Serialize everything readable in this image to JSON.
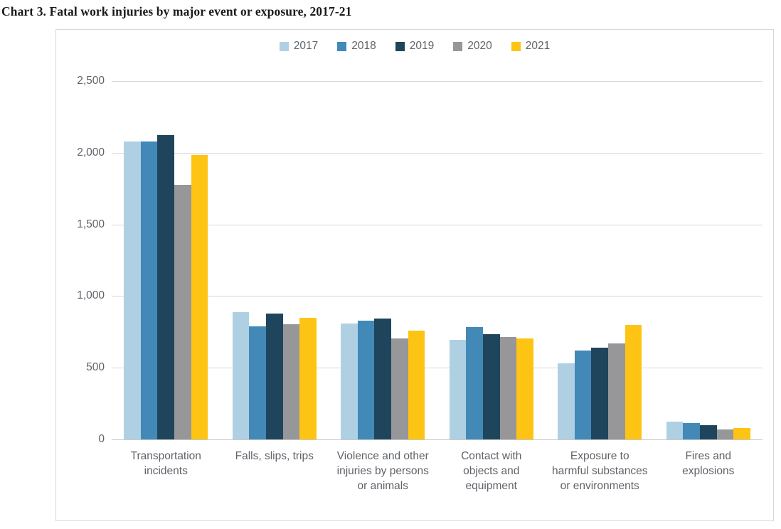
{
  "chart_data": {
    "type": "bar",
    "title": "Chart 3. Fatal work injuries by major event or exposure, 2017-21",
    "categories": [
      "Transportation incidents",
      "Falls, slips, trips",
      "Violence and other injuries by persons or animals",
      "Contact with objects and equipment",
      "Exposure to harmful substances or environments",
      "Fires and explosions"
    ],
    "series": [
      {
        "name": "2017",
        "color": "#AFD0E3",
        "values": [
          2077,
          887,
          807,
          695,
          531,
          123
        ]
      },
      {
        "name": "2018",
        "color": "#4289B8",
        "values": [
          2080,
          791,
          828,
          786,
          621,
          115
        ]
      },
      {
        "name": "2019",
        "color": "#1F455C",
        "values": [
          2122,
          880,
          841,
          732,
          642,
          99
        ]
      },
      {
        "name": "2020",
        "color": "#97979A",
        "values": [
          1778,
          805,
          705,
          716,
          672,
          71
        ]
      },
      {
        "name": "2021",
        "color": "#FDC413",
        "values": [
          1982,
          850,
          761,
          705,
          798,
          77
        ]
      }
    ],
    "ylim": [
      0,
      2500
    ],
    "yticks": [
      {
        "value": 0,
        "label": "0"
      },
      {
        "value": 500,
        "label": "500"
      },
      {
        "value": 1000,
        "label": "1,000"
      },
      {
        "value": 1500,
        "label": "1,500"
      },
      {
        "value": 2000,
        "label": "2,000"
      },
      {
        "value": 2500,
        "label": "2,500"
      }
    ],
    "grid": true,
    "legend_position": "top"
  },
  "colors": {
    "gridline": "#D9D9D9",
    "zero_axis": "#C9C9C9",
    "frame_border": "#D8D8D8",
    "axis_text": "#5F6368",
    "title_text": "#1A1A1A",
    "background": "#FFFFFF"
  }
}
